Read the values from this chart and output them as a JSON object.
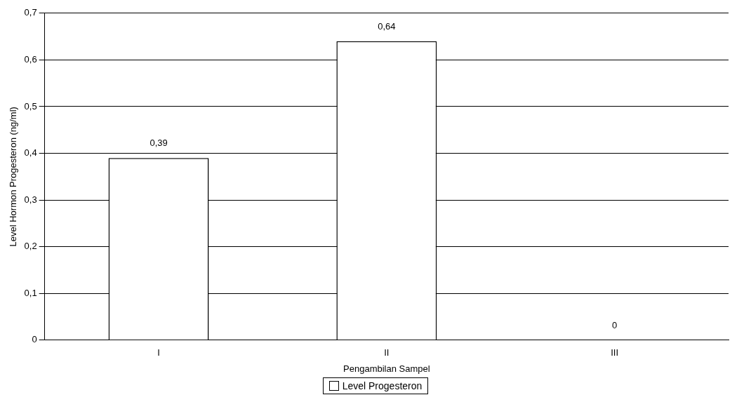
{
  "chart_data": {
    "type": "bar",
    "xlabel": "Pengambilan Sampel",
    "ylabel": "Level Hormon Progesteron (ng/ml)",
    "categories": [
      "I",
      "II",
      "III"
    ],
    "series": [
      {
        "name": "Level Progesteron",
        "color": "#ffffff",
        "values": [
          0.39,
          0.64,
          0
        ],
        "value_labels": [
          "0,39",
          "0,64",
          "0"
        ]
      }
    ],
    "ylim": [
      0,
      0.7
    ],
    "yticks": [
      {
        "value": 0,
        "label": "0"
      },
      {
        "value": 0.1,
        "label": "0,1"
      },
      {
        "value": 0.2,
        "label": "0,2"
      },
      {
        "value": 0.3,
        "label": "0,3"
      },
      {
        "value": 0.4,
        "label": "0,4"
      },
      {
        "value": 0.5,
        "label": "0,5"
      },
      {
        "value": 0.6,
        "label": "0,6"
      },
      {
        "value": 0.7,
        "label": "0,7"
      }
    ],
    "grid": "y",
    "legend": "bottom"
  }
}
